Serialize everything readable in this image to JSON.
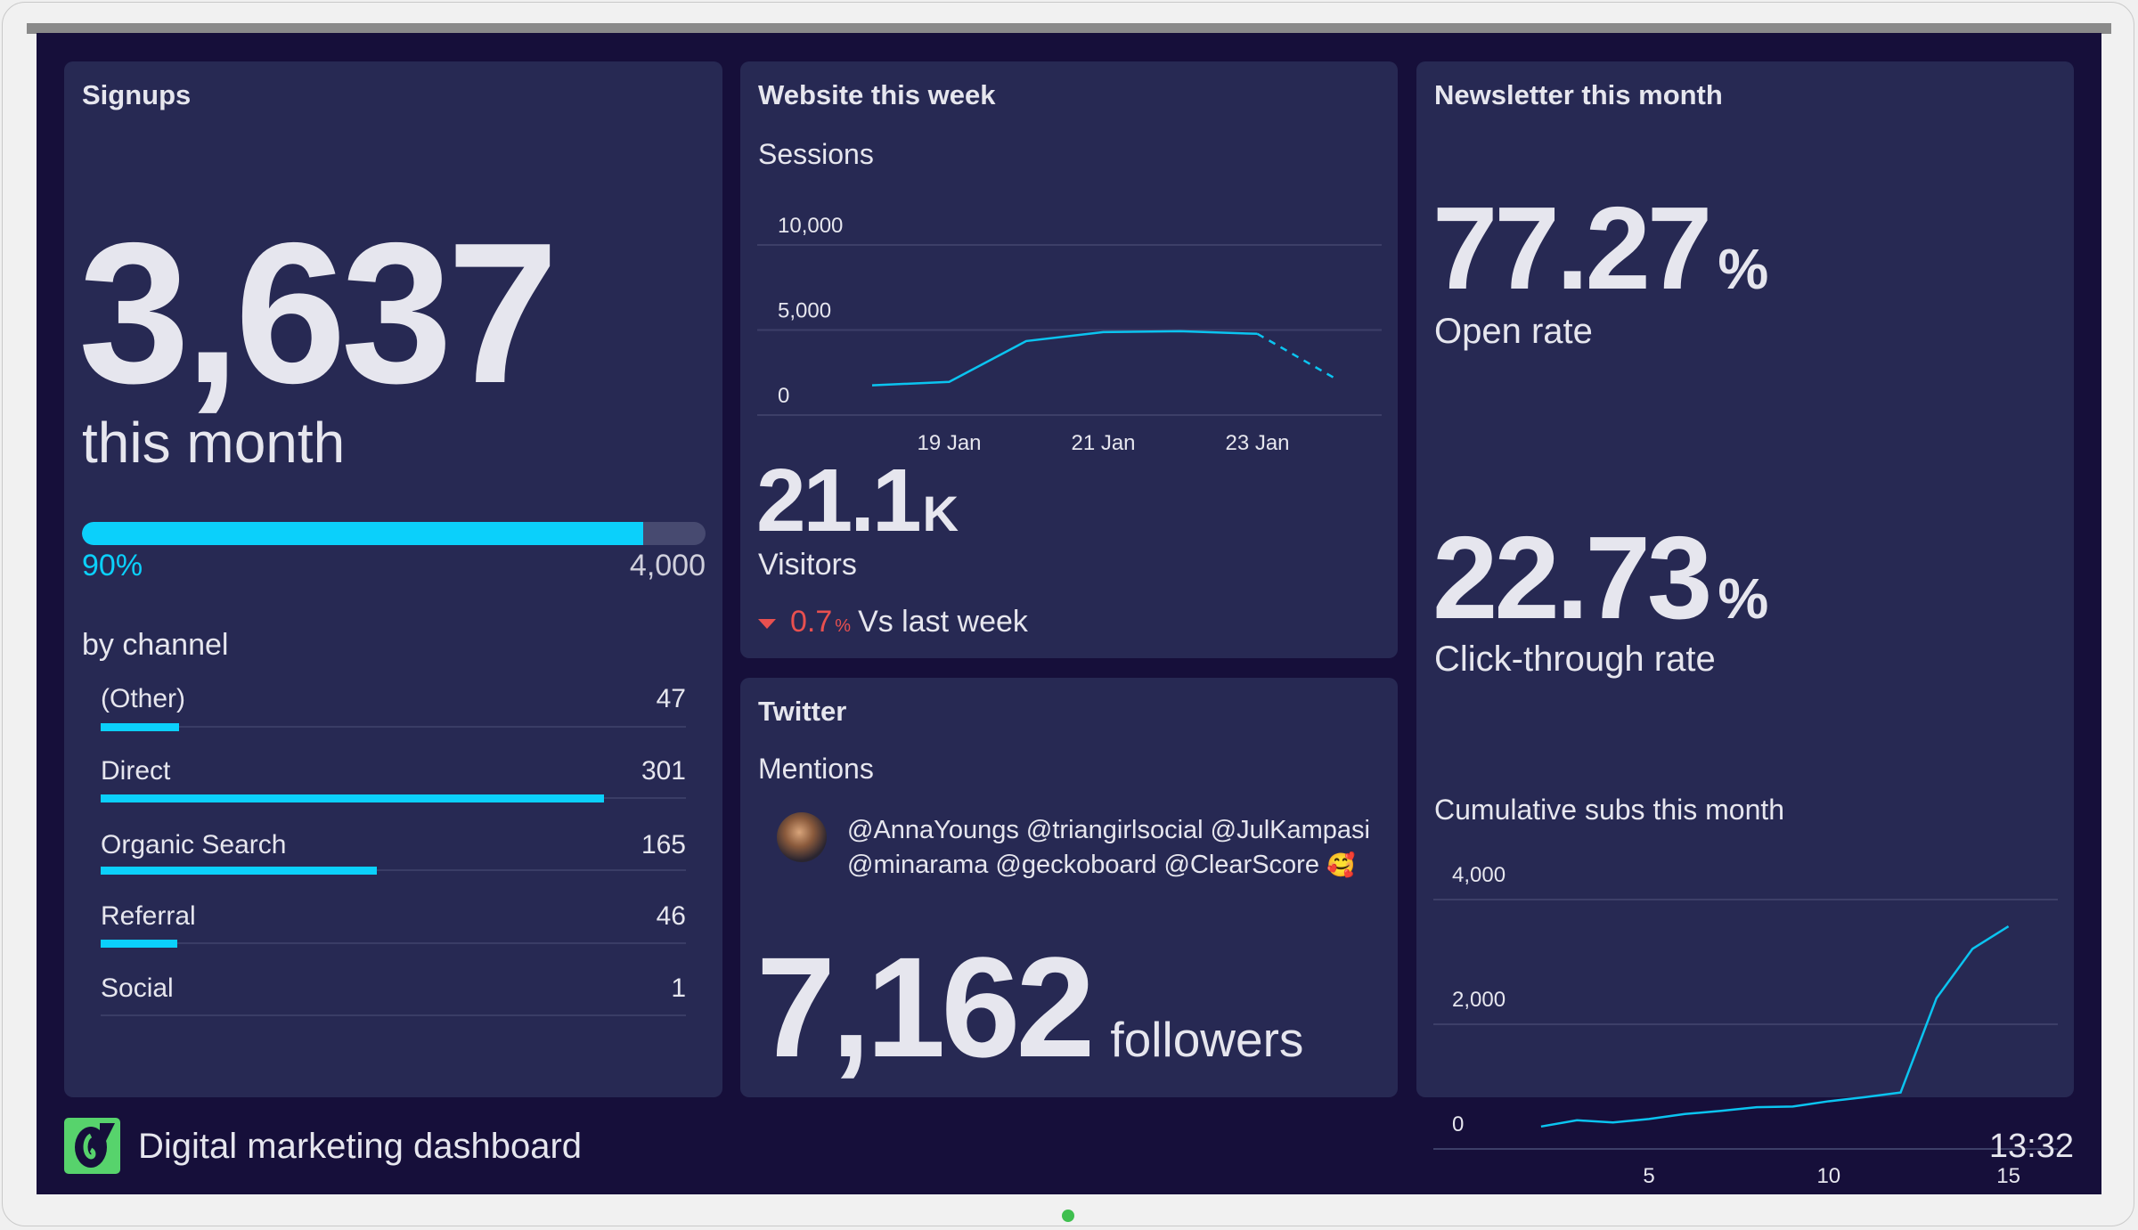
{
  "colors": {
    "accent": "#0bd0fb",
    "negative": "#e8504f",
    "panel": "#272953",
    "background": "#160f3a",
    "logo": "#57d36c"
  },
  "signups": {
    "title": "Signups",
    "value": "3,637",
    "subtitle": "this month",
    "progress_percent": 90,
    "progress_label": "90%",
    "goal": "4,000",
    "channel_heading": "by channel",
    "channel_scale_max": 350,
    "channels": [
      {
        "label": "(Other)",
        "value": "47",
        "n": 47
      },
      {
        "label": "Direct",
        "value": "301",
        "n": 301
      },
      {
        "label": "Organic Search",
        "value": "165",
        "n": 165
      },
      {
        "label": "Referral",
        "value": "46",
        "n": 46
      },
      {
        "label": "Social",
        "value": "1",
        "n": 1
      }
    ]
  },
  "website": {
    "title": "Website this week",
    "visitors_value": "21.1",
    "visitors_suffix": "K",
    "visitors_label": "Visitors",
    "change_icon": "triangle-down-icon",
    "change_value": "0.7",
    "change_unit": "%",
    "change_label": "Vs last week"
  },
  "twitter": {
    "title": "Twitter",
    "mentions_label": "Mentions",
    "mention_line1": "@AnnaYoungs @triangirlsocial @JulKampasi",
    "mention_line2": "@minarama @geckoboard @ClearScore",
    "emoji": "🥰",
    "followers_value": "7,162",
    "followers_label": "followers"
  },
  "newsletter": {
    "title": "Newsletter this month",
    "open_rate_value": "77.27",
    "open_rate_unit": "%",
    "open_rate_label": "Open rate",
    "ctr_value": "22.73",
    "ctr_unit": "%",
    "ctr_label": "Click-through rate"
  },
  "footer": {
    "title": "Digital marketing dashboard",
    "time": "13:32"
  },
  "chart_data": [
    {
      "type": "line",
      "title": "Sessions",
      "x": [
        "18 Jan",
        "19 Jan",
        "20 Jan",
        "21 Jan",
        "22 Jan",
        "23 Jan",
        "24 Jan"
      ],
      "values": [
        1750,
        1950,
        4350,
        4875,
        4925,
        4775,
        2175
      ],
      "projected_from_index": 5,
      "x_tick_labels": [
        "19 Jan",
        "21 Jan",
        "23 Jan"
      ],
      "y_ticks": [
        0,
        5000,
        10000
      ],
      "y_tick_labels": [
        "0",
        "5,000",
        "10,000"
      ],
      "ylim": [
        0,
        10000
      ],
      "grid": true
    },
    {
      "type": "line",
      "title": "Cumulative subs this month",
      "x": [
        2,
        3,
        4,
        5,
        6,
        7,
        8,
        9,
        10,
        11,
        12,
        13,
        14,
        15
      ],
      "values": [
        360,
        460,
        425,
        480,
        560,
        610,
        670,
        680,
        765,
        830,
        905,
        2420,
        3210,
        3570
      ],
      "x_tick_labels": [
        "5",
        "10",
        "15"
      ],
      "x_ticks": [
        5,
        10,
        15
      ],
      "y_ticks": [
        0,
        2000,
        4000
      ],
      "y_tick_labels": [
        "0",
        "2,000",
        "4,000"
      ],
      "ylim": [
        0,
        4000
      ],
      "grid": true
    }
  ]
}
